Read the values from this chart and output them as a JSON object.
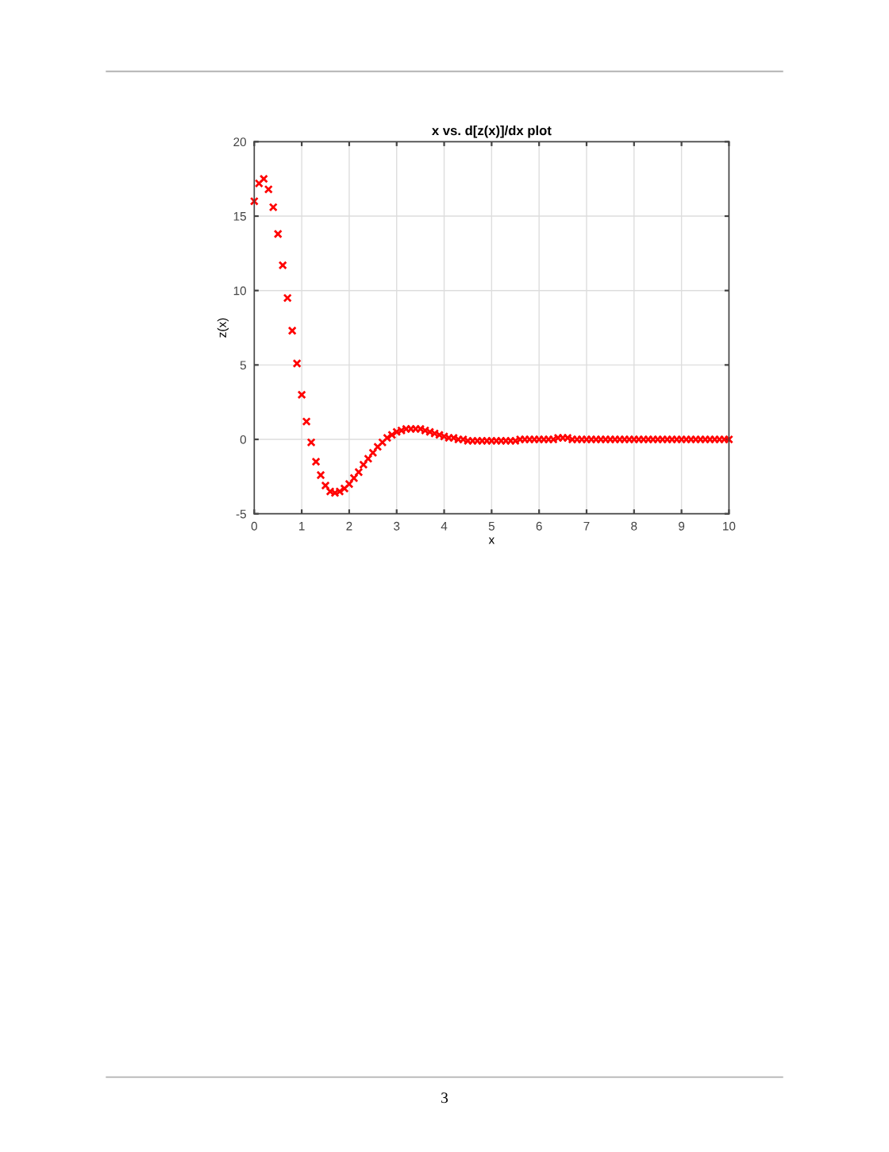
{
  "chart_data": {
    "type": "scatter",
    "title": "x vs. d[z(x)]/dx plot",
    "xlabel": "x",
    "ylabel": "z(x)",
    "x": [
      0,
      0.1,
      0.2,
      0.3,
      0.4,
      0.5,
      0.6,
      0.7,
      0.8,
      0.9,
      1.0,
      1.1,
      1.2,
      1.3,
      1.4,
      1.5,
      1.6,
      1.7,
      1.8,
      1.9,
      2.0,
      2.1,
      2.2,
      2.3,
      2.4,
      2.5,
      2.6,
      2.7,
      2.8,
      2.9,
      3.0,
      3.1,
      3.2,
      3.3,
      3.4,
      3.5,
      3.6,
      3.7,
      3.8,
      3.9,
      4.0,
      4.1,
      4.2,
      4.3,
      4.4,
      4.5,
      4.6,
      4.7,
      4.8,
      4.9,
      5.0,
      5.1,
      5.2,
      5.3,
      5.4,
      5.5,
      5.6,
      5.7,
      5.8,
      5.9,
      6.0,
      6.1,
      6.2,
      6.3,
      6.4,
      6.5,
      6.6,
      6.7,
      6.8,
      6.9,
      7.0,
      7.1,
      7.2,
      7.3,
      7.4,
      7.5,
      7.6,
      7.7,
      7.8,
      7.9,
      8.0,
      8.1,
      8.2,
      8.3,
      8.4,
      8.5,
      8.6,
      8.7,
      8.8,
      8.9,
      9.0,
      9.1,
      9.2,
      9.3,
      9.4,
      9.5,
      9.6,
      9.7,
      9.8,
      9.9,
      10.0
    ],
    "series": [
      {
        "color": "#ff0000",
        "values": [
          16.0,
          17.2,
          17.5,
          16.8,
          15.6,
          13.8,
          11.7,
          9.5,
          7.3,
          5.1,
          3.0,
          1.2,
          -0.2,
          -1.5,
          -2.4,
          -3.1,
          -3.5,
          -3.6,
          -3.5,
          -3.3,
          -3.0,
          -2.6,
          -2.2,
          -1.7,
          -1.3,
          -0.9,
          -0.5,
          -0.2,
          0.1,
          0.3,
          0.5,
          0.6,
          0.7,
          0.7,
          0.7,
          0.7,
          0.6,
          0.5,
          0.4,
          0.3,
          0.2,
          0.1,
          0.1,
          0.0,
          0.0,
          -0.1,
          -0.1,
          -0.1,
          -0.1,
          -0.1,
          -0.1,
          -0.1,
          -0.1,
          -0.1,
          -0.1,
          -0.1,
          0.0,
          0.0,
          0.0,
          0.0,
          0.0,
          0.0,
          0.0,
          0.0,
          0.1,
          0.1,
          0.1,
          0.0,
          0.0,
          0.0,
          0.0,
          0.0,
          0.0,
          0.0,
          0.0,
          0.0,
          0.0,
          0.0,
          0.0,
          0.0,
          0.0,
          0.0,
          0.0,
          0.0,
          0.0,
          0.0,
          0.0,
          0.0,
          0.0,
          0.0,
          0.0,
          0.0,
          0.0,
          0.0,
          0.0,
          0.0,
          0.0,
          0.0,
          0.0,
          0.0,
          0.0
        ]
      }
    ],
    "xlim": [
      0,
      10
    ],
    "xticks": [
      0,
      1,
      2,
      3,
      4,
      5,
      6,
      7,
      8,
      9,
      10
    ],
    "ylim": [
      -5,
      20
    ],
    "yticks": [
      -5,
      0,
      5,
      10,
      15,
      20
    ],
    "grid": true,
    "marker": "cross",
    "annotations": [
      "3"
    ]
  }
}
